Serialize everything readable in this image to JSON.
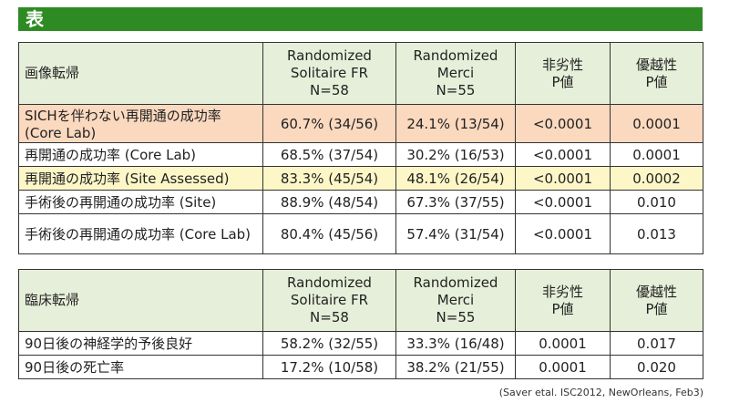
{
  "title": "表",
  "table1": {
    "headers": {
      "label": "画像転帰",
      "col1": [
        "Randomized",
        "Solitaire FR",
        "N=58"
      ],
      "col2": [
        "Randomized",
        "Merci",
        "N=55"
      ],
      "col3": [
        "非劣性",
        "P値"
      ],
      "col4": [
        "優越性",
        "P値"
      ]
    },
    "rows": [
      {
        "label": "SICHを伴わない再開通の成功率 (Core Lab)",
        "c1": "60.7% (34/56)",
        "c2": "24.1% (13/54)",
        "c3": "<0.0001",
        "c4": "0.0001",
        "highlight": "orange"
      },
      {
        "label": "再開通の成功率 (Core Lab)",
        "c1": "68.5% (37/54)",
        "c2": "30.2% (16/53)",
        "c3": "<0.0001",
        "c4": "0.0001",
        "highlight": ""
      },
      {
        "label": "再開通の成功率 (Site Assessed)",
        "c1": "83.3% (45/54)",
        "c2": "48.1% (26/54)",
        "c3": "<0.0001",
        "c4": "0.0002",
        "highlight": "yellow"
      },
      {
        "label": "手術後の再開通の成功率 (Site)",
        "c1": "88.9% (48/54)",
        "c2": "67.3% (37/55)",
        "c3": "<0.0001",
        "c4": "0.010",
        "highlight": ""
      },
      {
        "label": "手術後の再開通の成功率 (Core Lab)",
        "c1": "80.4% (45/56)",
        "c2": "57.4% (31/54)",
        "c3": "<0.0001",
        "c4": "0.013",
        "highlight": ""
      }
    ]
  },
  "table2": {
    "headers": {
      "label": "臨床転帰",
      "col1": [
        "Randomized",
        "Solitaire FR",
        "N=58"
      ],
      "col2": [
        "Randomized",
        "Merci",
        "N=55"
      ],
      "col3": [
        "非劣性",
        "P値"
      ],
      "col4": [
        "優越性",
        "P値"
      ]
    },
    "rows": [
      {
        "label": "90日後の神経学的予後良好",
        "c1": "58.2% (32/55)",
        "c2": "33.3% (16/48)",
        "c3": "0.0001",
        "c4": "0.017",
        "highlight": ""
      },
      {
        "label": "90日後の死亡率",
        "c1": "17.2% (10/58)",
        "c2": "38.2% (21/55)",
        "c3": "0.0001",
        "c4": "0.020",
        "highlight": ""
      }
    ]
  },
  "citation": "(Saver etal. ISC2012, NewOrleans, Feb3)",
  "colors": {
    "title_bg": "#2e8b23",
    "header_bg": "#e6efd9",
    "orange_row": "#fbd9bf",
    "yellow_row": "#fdf7c8"
  }
}
